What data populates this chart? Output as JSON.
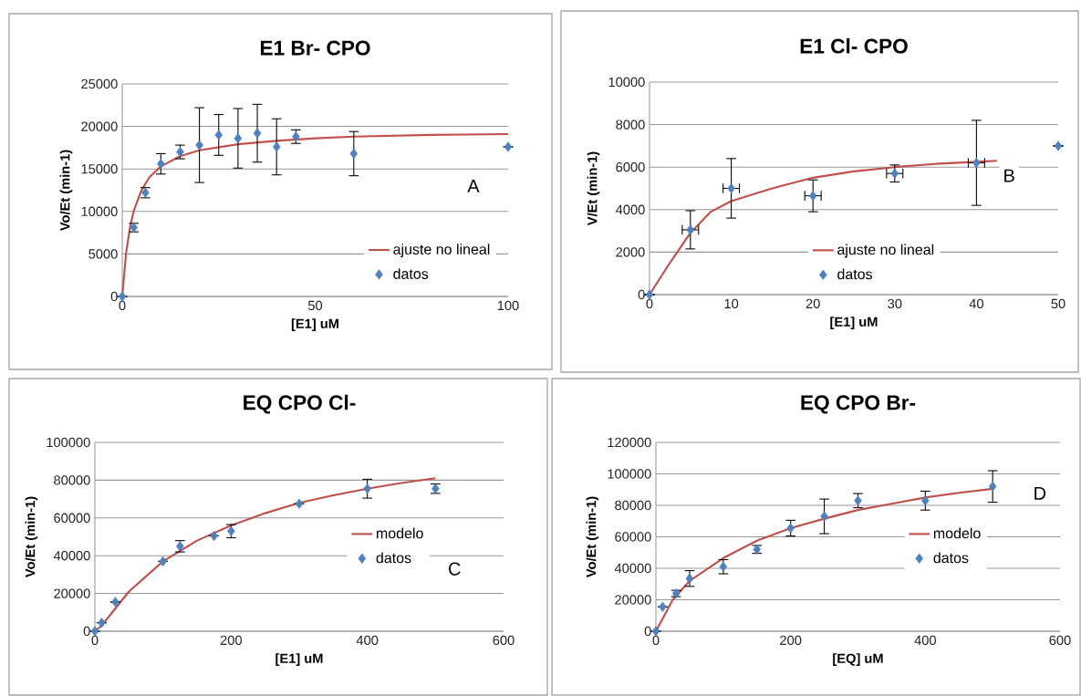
{
  "chart_data": [
    {
      "type": "scatter",
      "title": "E1 Br- CPO",
      "xlabel": "[E1] uM",
      "ylabel": "Vo/Et (min-1)",
      "xlim": [
        0,
        100
      ],
      "xticks": [
        0,
        50,
        100
      ],
      "ylim": [
        0,
        25000
      ],
      "yticks": [
        0,
        5000,
        10000,
        15000,
        20000,
        25000
      ],
      "grid": "y",
      "legend": "bottom right",
      "marker": "diamond",
      "annotations": [
        "A"
      ],
      "series": [
        {
          "name": "ajuste no lineal",
          "type": "line",
          "marker": "none",
          "color": "#c0504d",
          "x": [
            0,
            1,
            2,
            3,
            5,
            7,
            10,
            15,
            20,
            30,
            40,
            50,
            60,
            80,
            100
          ],
          "values": [
            0,
            5100,
            8100,
            10100,
            12500,
            14000,
            15300,
            16500,
            17200,
            17900,
            18300,
            18600,
            18800,
            19000,
            19100
          ]
        },
        {
          "name": "datos",
          "type": "scatter",
          "color": "#4f81bd",
          "x": [
            0,
            3,
            6,
            10,
            15,
            20,
            25,
            30,
            35,
            40,
            45,
            60,
            100
          ],
          "values": [
            0,
            8100,
            12200,
            15600,
            17000,
            17800,
            19000,
            18600,
            19200,
            17600,
            18800,
            16800,
            17600
          ],
          "errors": [
            null,
            500,
            600,
            1200,
            800,
            4400,
            2400,
            3500,
            3400,
            3300,
            800,
            2600,
            null
          ]
        }
      ]
    },
    {
      "type": "scatter",
      "title": "E1 Cl- CPO",
      "xlabel": "[E1] uM",
      "ylabel": "V/Et (min-1)",
      "xlim": [
        0,
        50
      ],
      "xticks": [
        0,
        10,
        20,
        30,
        40,
        50
      ],
      "ylim": [
        0,
        10000
      ],
      "yticks": [
        0,
        2000,
        4000,
        6000,
        8000,
        10000
      ],
      "grid": "y",
      "legend": "bottom",
      "marker": "diamond",
      "annotations": [
        "B"
      ],
      "series": [
        {
          "name": "ajuste no lineal",
          "type": "line",
          "marker": "none",
          "color": "#c0504d",
          "x": [
            0,
            2.5,
            5,
            7.5,
            10,
            15,
            20,
            25,
            30,
            35,
            40,
            42.5
          ],
          "values": [
            0,
            1500,
            2900,
            3900,
            4400,
            5000,
            5500,
            5800,
            6000,
            6150,
            6250,
            6300
          ]
        },
        {
          "name": "datos",
          "type": "scatter",
          "color": "#4f81bd",
          "x": [
            0,
            5,
            10,
            20,
            30,
            40,
            50
          ],
          "values": [
            0,
            3050,
            5000,
            4650,
            5700,
            6200,
            7000
          ],
          "errors": [
            null,
            900,
            1400,
            750,
            400,
            2000,
            null
          ],
          "xerrors": [
            null,
            1,
            1,
            1,
            1,
            1,
            null
          ]
        }
      ]
    },
    {
      "type": "scatter",
      "title": "EQ CPO Cl-",
      "xlabel": "[E1] uM",
      "ylabel": "Vo/Et (min-1)",
      "xlim": [
        0,
        600
      ],
      "xticks": [
        0,
        200,
        400,
        600
      ],
      "ylim": [
        0,
        100000
      ],
      "yticks": [
        0,
        20000,
        40000,
        60000,
        80000,
        100000
      ],
      "grid": "y",
      "legend": "right",
      "marker": "diamond",
      "annotations": [
        "C"
      ],
      "series": [
        {
          "name": "modelo",
          "type": "line",
          "marker": "none",
          "color": "#c0504d",
          "x": [
            0,
            10,
            50,
            100,
            150,
            200,
            250,
            300,
            350,
            400,
            450,
            500
          ],
          "values": [
            0,
            3000,
            21000,
            37000,
            48000,
            56000,
            62500,
            68000,
            72000,
            75500,
            78500,
            81000
          ]
        },
        {
          "name": "datos",
          "type": "scatter",
          "color": "#4f81bd",
          "x": [
            0,
            10,
            30,
            100,
            125,
            175,
            200,
            300,
            400,
            500
          ],
          "values": [
            0,
            4500,
            15500,
            37000,
            45000,
            50500,
            53000,
            67500,
            75500,
            75500
          ],
          "errors": [
            null,
            null,
            null,
            null,
            3000,
            null,
            3500,
            null,
            5000,
            2500
          ]
        }
      ]
    },
    {
      "type": "scatter",
      "title": "EQ CPO Br-",
      "xlabel": "[EQ] uM",
      "ylabel": "Vo/Et (min-1)",
      "xlim": [
        0,
        600
      ],
      "xticks": [
        0,
        200,
        400,
        600
      ],
      "ylim": [
        0,
        120000
      ],
      "yticks": [
        0,
        20000,
        40000,
        60000,
        80000,
        100000,
        120000
      ],
      "grid": "y",
      "legend": "right",
      "marker": "diamond",
      "annotations": [
        "D"
      ],
      "series": [
        {
          "name": "modelo",
          "type": "line",
          "marker": "none",
          "color": "#c0504d",
          "x": [
            0,
            25,
            50,
            100,
            150,
            200,
            250,
            300,
            350,
            400,
            450,
            500
          ],
          "values": [
            0,
            20000,
            32000,
            46500,
            57500,
            65500,
            71500,
            77000,
            81000,
            85000,
            88000,
            90500
          ]
        },
        {
          "name": "datos",
          "type": "scatter",
          "color": "#4f81bd",
          "x": [
            0,
            10,
            30,
            50,
            100,
            150,
            200,
            250,
            300,
            400,
            500
          ],
          "values": [
            0,
            15500,
            24000,
            33500,
            41000,
            52000,
            65500,
            73000,
            83000,
            83000,
            92000
          ],
          "errors": [
            null,
            null,
            2000,
            5000,
            4500,
            2500,
            5000,
            11000,
            4500,
            6000,
            10000
          ]
        }
      ]
    }
  ]
}
